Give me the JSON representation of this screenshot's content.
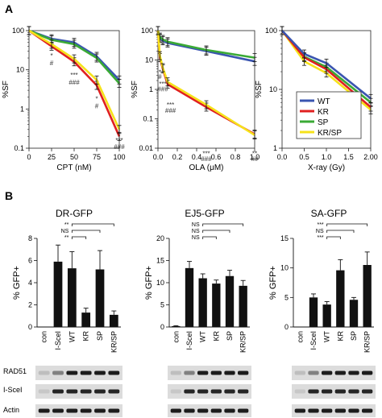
{
  "panel_labels": {
    "a": "A",
    "b": "B"
  },
  "colors": {
    "WT": "#3a55b0",
    "KR": "#e02020",
    "SP": "#3aaa35",
    "KR/SP": "#f6e21a",
    "bar": "#111111"
  },
  "legend": {
    "items": [
      "WT",
      "KR",
      "SP",
      "KR/SP"
    ]
  },
  "blot": {
    "rows": [
      "RAD51",
      "I-SceI",
      "Actin"
    ]
  },
  "chart_data": [
    {
      "type": "line",
      "scale": "log",
      "ylabel": "%SF",
      "xlabel": "CPT (nM)",
      "xlim": [
        0,
        100
      ],
      "ylim": [
        0.1,
        100
      ],
      "xticks": [
        "0",
        "25",
        "50",
        "75",
        "100"
      ],
      "yticks": [
        "0.1",
        "1",
        "10",
        "100"
      ],
      "series": [
        {
          "name": "WT",
          "x": [
            0,
            25,
            50,
            75,
            100
          ],
          "y": [
            100,
            62,
            50,
            22,
            5.5
          ]
        },
        {
          "name": "SP",
          "x": [
            0,
            25,
            50,
            75,
            100
          ],
          "y": [
            100,
            58,
            45,
            20,
            4.5
          ]
        },
        {
          "name": "KR",
          "x": [
            0,
            25,
            50,
            75,
            100
          ],
          "y": [
            100,
            40,
            16,
            4,
            0.2
          ]
        },
        {
          "name": "KR/SP",
          "x": [
            0,
            25,
            50,
            75,
            100
          ],
          "y": [
            100,
            45,
            19,
            5.5,
            0.3
          ]
        }
      ],
      "annotations": [
        {
          "text": "*",
          "x": 25,
          "y": 20
        },
        {
          "text": "#",
          "x": 25,
          "y": 13
        },
        {
          "text": "***",
          "x": 50,
          "y": 6.5
        },
        {
          "text": "###",
          "x": 50,
          "y": 4.2
        },
        {
          "text": "*",
          "x": 75,
          "y": 1.6
        },
        {
          "text": "#",
          "x": 75,
          "y": 1.05
        },
        {
          "text": "***",
          "x": 100,
          "y": 0.14
        },
        {
          "text": "###",
          "x": 100,
          "y": 0.095
        }
      ]
    },
    {
      "type": "line",
      "scale": "log",
      "ylabel": "%SF",
      "xlabel": "OLA (μM)",
      "xlim": [
        0,
        1.0
      ],
      "ylim": [
        0.01,
        100
      ],
      "xticks": [
        "0.0",
        "0.2",
        "0.4",
        "0.6",
        "0.8",
        "1.0"
      ],
      "yticks": [
        "0.01",
        "0.1",
        "1",
        "10",
        "100"
      ],
      "series": [
        {
          "name": "WT",
          "x": [
            0,
            0.02,
            0.05,
            0.1,
            0.5,
            1.0
          ],
          "y": [
            100,
            55,
            45,
            38,
            20,
            9
          ]
        },
        {
          "name": "SP",
          "x": [
            0,
            0.02,
            0.05,
            0.1,
            0.5,
            1.0
          ],
          "y": [
            100,
            60,
            50,
            42,
            22,
            12
          ]
        },
        {
          "name": "KR",
          "x": [
            0,
            0.02,
            0.05,
            0.1,
            0.5,
            1.0
          ],
          "y": [
            100,
            12,
            5,
            1.5,
            0.25,
            0.03
          ]
        },
        {
          "name": "KR/SP",
          "x": [
            0,
            0.02,
            0.05,
            0.1,
            0.5,
            1.0
          ],
          "y": [
            100,
            14,
            5.5,
            1.8,
            0.3,
            0.028
          ]
        }
      ],
      "annotations": [
        {
          "text": "*",
          "x": 0.02,
          "y": 3.2
        },
        {
          "text": "#",
          "x": 0.02,
          "y": 2.3
        },
        {
          "text": "***",
          "x": 0.05,
          "y": 1.3
        },
        {
          "text": "###",
          "x": 0.05,
          "y": 0.85
        },
        {
          "text": "***",
          "x": 0.13,
          "y": 0.25
        },
        {
          "text": "###",
          "x": 0.13,
          "y": 0.16
        },
        {
          "text": "***",
          "x": 0.5,
          "y": 0.0055
        },
        {
          "text": "###",
          "x": 0.5,
          "y": 0.0036
        },
        {
          "text": "**",
          "x": 1.0,
          "y": 0.0055
        },
        {
          "text": "##",
          "x": 1.0,
          "y": 0.0036
        }
      ]
    },
    {
      "type": "line",
      "scale": "log",
      "ylabel": "%SF",
      "xlabel": "X-ray (Gy)",
      "xlim": [
        0,
        2.0
      ],
      "ylim": [
        1,
        100
      ],
      "xticks": [
        "0.0",
        "0.5",
        "1.0",
        "1.5",
        "2.00"
      ],
      "yticks": [
        "1",
        "10",
        "100"
      ],
      "series": [
        {
          "name": "WT",
          "x": [
            0,
            0.5,
            1.0,
            2.0
          ],
          "y": [
            100,
            40,
            28,
            7
          ]
        },
        {
          "name": "KR",
          "x": [
            0,
            0.5,
            1.0,
            2.0
          ],
          "y": [
            100,
            35,
            22,
            5
          ]
        },
        {
          "name": "SP",
          "x": [
            0,
            0.5,
            1.0,
            2.0
          ],
          "y": [
            100,
            36,
            24,
            6
          ]
        },
        {
          "name": "KR/SP",
          "x": [
            0,
            0.5,
            1.0,
            2.0
          ],
          "y": [
            100,
            30,
            19,
            4.5
          ]
        }
      ]
    },
    {
      "type": "bar",
      "title": "DR-GFP",
      "ylabel": "% GFP+",
      "ylim": [
        0,
        8
      ],
      "yticks": [
        "0",
        "2",
        "4",
        "6",
        "8"
      ],
      "categories": [
        "con",
        "I-SceI",
        "WT",
        "KR",
        "SP",
        "KR/SP"
      ],
      "values": [
        0,
        5.9,
        5.3,
        1.3,
        5.2,
        1.1
      ],
      "errors": [
        0,
        1.5,
        1.5,
        0.4,
        1.7,
        0.35
      ],
      "significance": [
        [
          "**",
          "WT",
          "KR/SP"
        ],
        [
          "NS",
          "WT",
          "SP"
        ],
        [
          "**",
          "WT",
          "KR"
        ]
      ]
    },
    {
      "type": "bar",
      "title": "EJ5-GFP",
      "ylabel": "% GFP+",
      "ylim": [
        0,
        20
      ],
      "yticks": [
        "0",
        "5",
        "10",
        "15",
        "20"
      ],
      "categories": [
        "con",
        "I-SceI",
        "WT",
        "KR",
        "SP",
        "KR/SP"
      ],
      "values": [
        0.2,
        13.3,
        11.0,
        9.8,
        11.5,
        9.3
      ],
      "errors": [
        0.1,
        1.5,
        1.0,
        0.8,
        1.3,
        1.2
      ],
      "significance": [
        [
          "NS",
          "WT",
          "KR/SP"
        ],
        [
          "NS",
          "WT",
          "SP"
        ],
        [
          "NS",
          "WT",
          "KR"
        ]
      ]
    },
    {
      "type": "bar",
      "title": "SA-GFP",
      "ylabel": "% GFP+",
      "ylim": [
        0,
        15
      ],
      "yticks": [
        "0",
        "5",
        "10",
        "15"
      ],
      "categories": [
        "con",
        "I-SceI",
        "WT",
        "KR",
        "SP",
        "KR/SP"
      ],
      "values": [
        0,
        5.0,
        3.8,
        9.6,
        4.6,
        10.5
      ],
      "errors": [
        0,
        0.6,
        0.5,
        1.8,
        0.4,
        2.2
      ],
      "significance": [
        [
          "***",
          "WT",
          "KR/SP"
        ],
        [
          "NS",
          "WT",
          "SP"
        ],
        [
          "***",
          "WT",
          "KR"
        ]
      ]
    }
  ]
}
